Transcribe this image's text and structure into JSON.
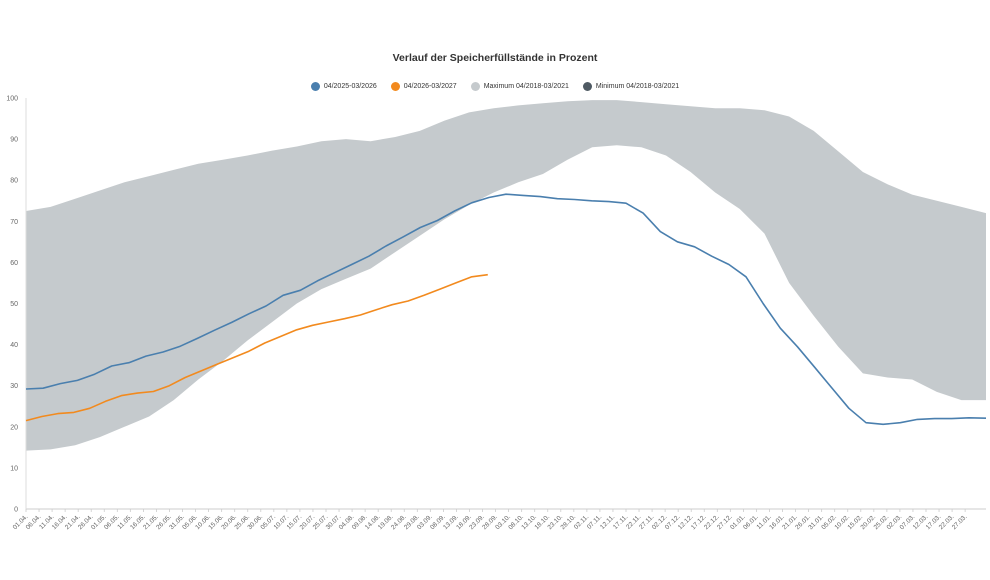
{
  "chart_data": {
    "type": "area",
    "title": "Verlauf der Speicherfüllstände in Prozent",
    "xlabel": "",
    "ylabel": "",
    "ylim": [
      0,
      100
    ],
    "y_ticks": [
      0,
      10,
      20,
      30,
      40,
      50,
      60,
      70,
      80,
      90,
      100
    ],
    "legend_position": "top-center",
    "grid": false,
    "x_ticks": [
      "01.04.",
      "06.04.",
      "11.04.",
      "16.04.",
      "21.04.",
      "26.04.",
      "01.05.",
      "06.05.",
      "11.05.",
      "16.05.",
      "21.05.",
      "26.05.",
      "31.05.",
      "05.06.",
      "10.06.",
      "15.06.",
      "20.06.",
      "25.06.",
      "30.06.",
      "05.07.",
      "10.07.",
      "15.07.",
      "20.07.",
      "25.07.",
      "30.07.",
      "04.08.",
      "09.08.",
      "14.08.",
      "19.08.",
      "24.08.",
      "29.08.",
      "03.09.",
      "08.09.",
      "13.09.",
      "18.09.",
      "23.09.",
      "28.09.",
      "03.10.",
      "08.10.",
      "13.10.",
      "18.10.",
      "23.10.",
      "28.10.",
      "02.11.",
      "07.11.",
      "12.11.",
      "17.11.",
      "22.11.",
      "27.11.",
      "02.12.",
      "07.12.",
      "12.12.",
      "17.12.",
      "22.12.",
      "27.12.",
      "01.01.",
      "06.01.",
      "11.01.",
      "16.01.",
      "21.01.",
      "26.01.",
      "31.01.",
      "05.02.",
      "10.02.",
      "15.02.",
      "20.02.",
      "25.02.",
      "02.03.",
      "07.03.",
      "12.03.",
      "17.03.",
      "22.03.",
      "27.03."
    ],
    "series": [
      {
        "name": "04/2025-03/2026",
        "color": "#4a7fae",
        "kind": "line",
        "values": [
          29.2,
          29.4,
          30.5,
          31.3,
          32.8,
          34.8,
          35.6,
          37.2,
          38.2,
          39.6,
          41.5,
          43.5,
          45.4,
          47.5,
          49.4,
          52.0,
          53.2,
          55.5,
          57.5,
          59.5,
          61.5,
          64.0,
          66.2,
          68.5,
          70.2,
          72.5,
          74.5,
          75.8,
          76.6,
          76.3,
          76.0,
          75.5,
          75.3,
          75.0,
          74.8,
          74.4,
          72.0,
          67.5,
          65.0,
          63.8,
          61.5,
          59.5,
          56.5,
          50.0,
          44.0,
          39.5,
          34.5,
          29.5,
          24.5,
          21.0,
          20.6,
          21.0,
          21.8,
          22.0,
          22.0,
          22.2,
          22.1
        ]
      },
      {
        "name": "04/2026-03/2027",
        "color": "#f28a1e",
        "kind": "line",
        "values": [
          21.5,
          22.5,
          23.2,
          23.5,
          24.5,
          26.2,
          27.6,
          28.2,
          28.6,
          30.0,
          32.0,
          33.6,
          35.2,
          36.8,
          38.4,
          40.4,
          42.0,
          43.6,
          44.7,
          45.5,
          46.3,
          47.2,
          48.5,
          49.7,
          50.6,
          52.0,
          53.5,
          55.0,
          56.5,
          57.0
        ]
      },
      {
        "name": "Maximum 04/2018-03/2021",
        "color": "#c5cacd",
        "kind": "area",
        "values": [
          72.5,
          73.5,
          75.5,
          77.5,
          79.5,
          81.0,
          82.5,
          84.0,
          85.0,
          86.0,
          87.2,
          88.2,
          89.5,
          90.0,
          89.5,
          90.5,
          92.0,
          94.5,
          96.5,
          97.5,
          98.2,
          98.7,
          99.2,
          99.5,
          99.5,
          99.0,
          98.5,
          98.0,
          97.5,
          97.5,
          97.0,
          95.5,
          92.0,
          87.0,
          82.0,
          79.0,
          76.5,
          75.0,
          73.5,
          72.0
        ]
      },
      {
        "name": "Minimum 04/2018-03/2021",
        "color": "#4f5a63",
        "kind": "area-lower",
        "values": [
          14.2,
          14.5,
          15.5,
          17.5,
          20.0,
          22.5,
          26.5,
          31.5,
          36.0,
          41.0,
          45.5,
          50.0,
          53.5,
          56.0,
          58.5,
          62.5,
          66.5,
          70.5,
          74.0,
          77.0,
          79.5,
          81.5,
          85.0,
          88.0,
          88.5,
          88.0,
          86.0,
          82.0,
          77.0,
          73.0,
          67.0,
          55.0,
          47.0,
          39.5,
          33.0,
          32.0,
          31.5,
          28.5,
          26.5,
          26.5
        ]
      }
    ]
  }
}
